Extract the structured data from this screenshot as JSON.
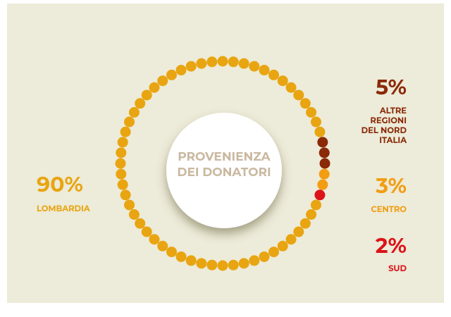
{
  "chart_data": {
    "type": "dot-ring",
    "title": "PROVENIENZA DEI DONATORI",
    "categories": [
      "LOMBARDIA",
      "ALTRE REGIONI DEL NORD ITALIA",
      "CENTRO",
      "SUD"
    ],
    "values": [
      90,
      5,
      3,
      2
    ],
    "value_labels": [
      "90%",
      "5%",
      "3%",
      "2%"
    ],
    "colors": [
      "#e8a511",
      "#8a2a08",
      "#f29d12",
      "#dc1319"
    ]
  }
}
